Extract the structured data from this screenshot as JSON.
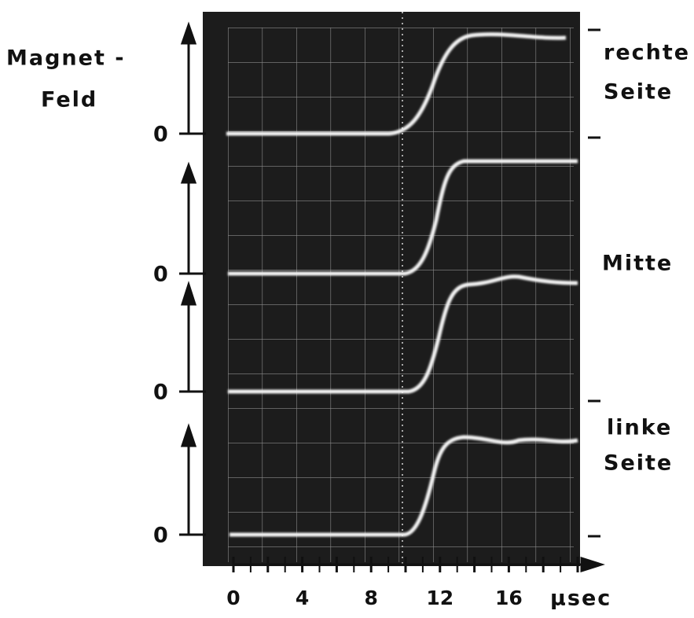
{
  "figure": {
    "y_label": [
      "Magnet -",
      "Feld"
    ],
    "zero_labels": [
      "0",
      "0",
      "0",
      "0"
    ],
    "trace_labels": {
      "top": [
        "rechte",
        "Seite"
      ],
      "middle": "Mitte",
      "bottom": [
        "linke",
        "Seite"
      ]
    },
    "x_axis": {
      "ticks": [
        0,
        4,
        8,
        12,
        16
      ],
      "unit": "µsec"
    }
  }
}
